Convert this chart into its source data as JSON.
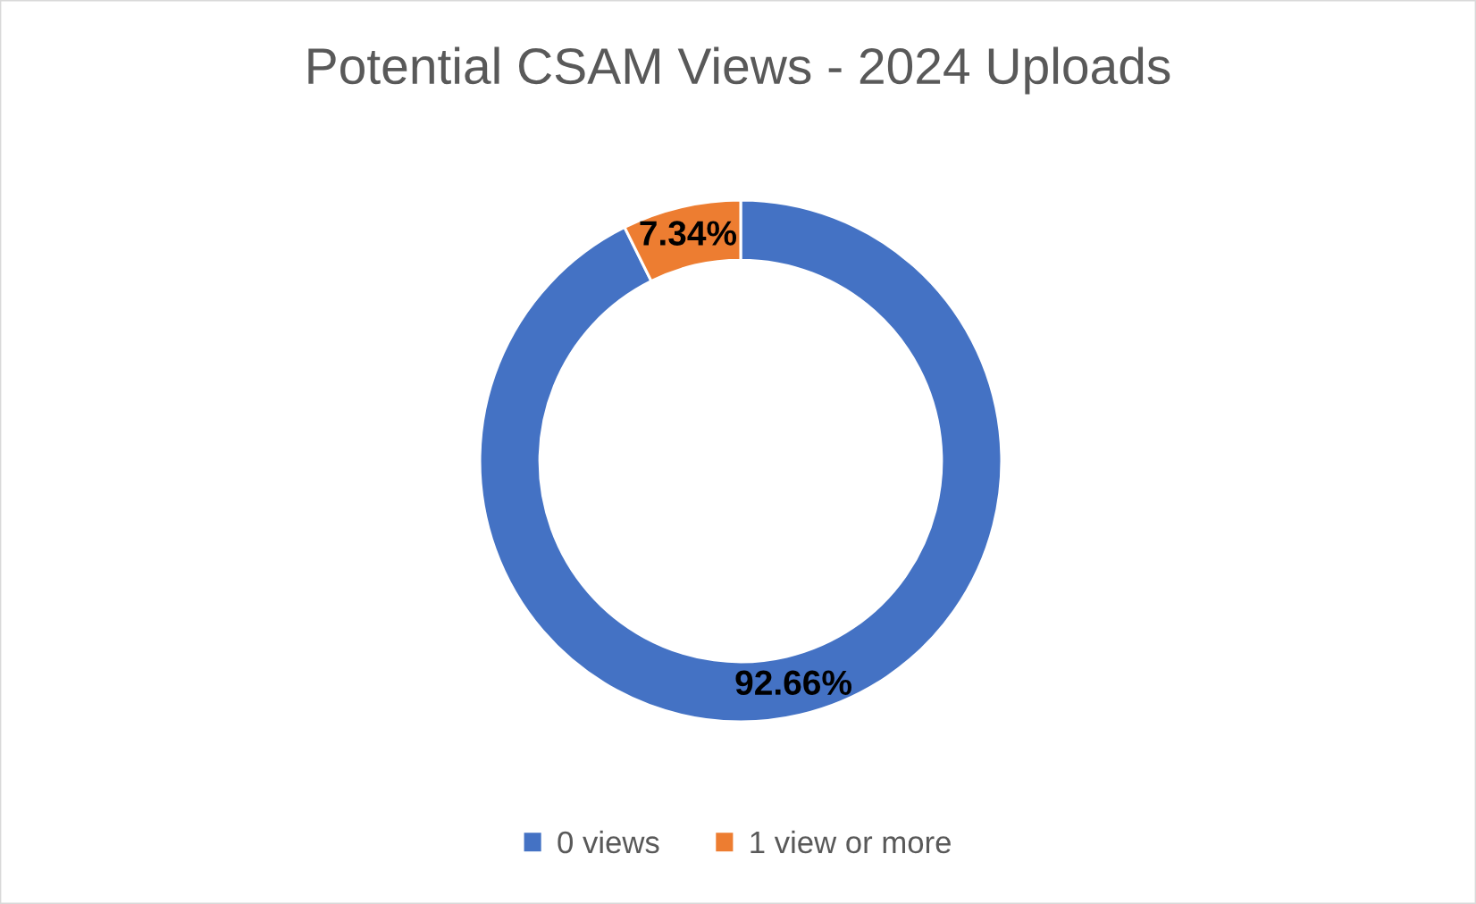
{
  "chart_data": {
    "type": "donut",
    "title": "Potential CSAM Views - 2024 Uploads",
    "categories": [
      "0 views",
      "1 view or more"
    ],
    "values": [
      92.66,
      7.34
    ],
    "colors": [
      "#4472c4",
      "#ed7d31"
    ],
    "value_labels": [
      "92.66%",
      "7.34%"
    ],
    "legend": "bottom"
  }
}
